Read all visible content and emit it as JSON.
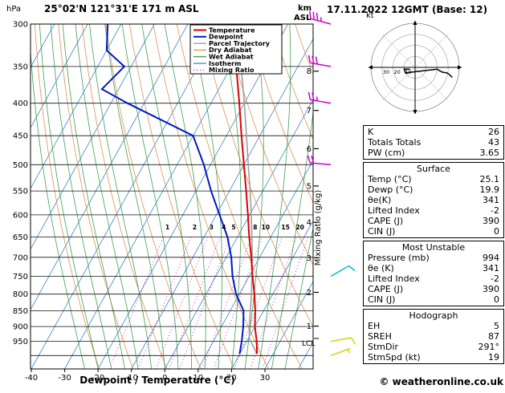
{
  "header": {
    "pressure_unit": "hPa",
    "station_title": "25°02'N 121°31'E 171 m ASL",
    "km_label": "km",
    "asl_label": "ASL",
    "datetime_title": "17.11.2022 12GMT (Base: 12)"
  },
  "footer": {
    "credit": "© weatheronline.co.uk"
  },
  "hodograph": {
    "unit_label": "kt",
    "ring_step_kt": 10,
    "ring_labels": [
      10,
      20,
      30
    ],
    "trace_uv_kt": [
      [
        -4.7,
        -1.7
      ],
      [
        -9.9,
        -1.7
      ],
      [
        -8.7,
        -5.0
      ],
      [
        19.9,
        -1.7
      ],
      [
        24.6,
        -4.3
      ],
      [
        29.5,
        -5.2
      ],
      [
        33.8,
        -9.1
      ]
    ]
  },
  "tables": [
    {
      "header": "",
      "rows": [
        [
          "K",
          "26"
        ],
        [
          "Totals Totals",
          "43"
        ],
        [
          "PW (cm)",
          "3.65"
        ]
      ]
    },
    {
      "header": "Surface",
      "rows": [
        [
          "Temp (°C)",
          "25.1"
        ],
        [
          "Dewp (°C)",
          "19.9"
        ],
        [
          "θe(K)",
          "341"
        ],
        [
          "Lifted Index",
          "-2"
        ],
        [
          "CAPE (J)",
          "390"
        ],
        [
          "CIN (J)",
          "0"
        ]
      ]
    },
    {
      "header": "Most Unstable",
      "rows": [
        [
          "Pressure (mb)",
          "994"
        ],
        [
          "θe (K)",
          "341"
        ],
        [
          "Lifted Index",
          "-2"
        ],
        [
          "CAPE (J)",
          "390"
        ],
        [
          "CIN (J)",
          "0"
        ]
      ]
    },
    {
      "header": "Hodograph",
      "rows": [
        [
          "EH",
          "5"
        ],
        [
          "SREH",
          "87"
        ],
        [
          "StmDir",
          "291°"
        ],
        [
          "StmSpd (kt)",
          "19"
        ]
      ]
    }
  ],
  "chart_data": {
    "type": "skewt-logp",
    "title": "25°02'N 121°31'E 171 m ASL",
    "x_axis": {
      "label": "Dewpoint / Temperature (°C)",
      "ticks": [
        -40,
        -30,
        -20,
        -10,
        0,
        10,
        20,
        30
      ]
    },
    "pressure_axis": {
      "unit": "hPa",
      "ticks": [
        300,
        350,
        400,
        450,
        500,
        550,
        600,
        650,
        700,
        750,
        800,
        850,
        900,
        950
      ],
      "range": [
        300,
        1050
      ],
      "scale": "log"
    },
    "km_axis": {
      "ticks": [
        1,
        2,
        3,
        4,
        5,
        6,
        7,
        8
      ],
      "lcl_label": "LCL",
      "lcl_pressure_hpa": 940
    },
    "mixing_ratio_axis_label": "Mixing Ratio (g/kg)",
    "mixing_ratio_lines_g_kg": [
      1,
      2,
      3,
      4,
      5,
      8,
      10,
      15,
      20,
      25
    ],
    "legend": [
      {
        "label": "Temperature",
        "color": "#dd0000",
        "dash": ""
      },
      {
        "label": "Dewpoint",
        "color": "#0018c8",
        "dash": ""
      },
      {
        "label": "Parcel Trajectory",
        "color": "#9e9e9e",
        "dash": ""
      },
      {
        "label": "Dry Adiabat",
        "color": "#e0914f",
        "dash": ""
      },
      {
        "label": "Wet Adiabat",
        "color": "#3fa052",
        "dash": ""
      },
      {
        "label": "Isotherm",
        "color": "#3c85c8",
        "dash": ""
      },
      {
        "label": "Mixing Ratio",
        "color": "#c81eb4",
        "dash": "1,3"
      }
    ],
    "series": {
      "temperature_p_c": [
        [
          994,
          25.1
        ],
        [
          950,
          23.0
        ],
        [
          925,
          21.5
        ],
        [
          900,
          20.0
        ],
        [
          850,
          17.5
        ],
        [
          800,
          14.5
        ],
        [
          750,
          11.0
        ],
        [
          700,
          7.5
        ],
        [
          650,
          3.5
        ],
        [
          600,
          -0.5
        ],
        [
          550,
          -5.0
        ],
        [
          500,
          -10.0
        ],
        [
          450,
          -15.5
        ],
        [
          400,
          -21.5
        ],
        [
          350,
          -28.5
        ],
        [
          300,
          -36.5
        ]
      ],
      "dewpoint_p_c": [
        [
          994,
          19.9
        ],
        [
          950,
          18.5
        ],
        [
          925,
          17.5
        ],
        [
          900,
          16.5
        ],
        [
          850,
          14.0
        ],
        [
          800,
          9.0
        ],
        [
          750,
          5.0
        ],
        [
          700,
          1.5
        ],
        [
          650,
          -3.0
        ],
        [
          600,
          -9.0
        ],
        [
          550,
          -15.5
        ],
        [
          500,
          -22.0
        ],
        [
          450,
          -30.0
        ],
        [
          400,
          -55.0
        ],
        [
          380,
          -65.0
        ],
        [
          350,
          -62.0
        ],
        [
          330,
          -70.0
        ],
        [
          300,
          -74.0
        ]
      ],
      "parcel_trajectory_p_c": [
        [
          994,
          25.1
        ],
        [
          940,
          20.3
        ],
        [
          900,
          18.3
        ],
        [
          850,
          16.0
        ],
        [
          800,
          13.6
        ],
        [
          750,
          10.8
        ],
        [
          700,
          7.8
        ],
        [
          650,
          4.3
        ],
        [
          600,
          0.5
        ],
        [
          550,
          -3.8
        ],
        [
          500,
          -8.7
        ],
        [
          450,
          -14.0
        ],
        [
          400,
          -20.0
        ],
        [
          350,
          -27.0
        ],
        [
          300,
          -35.5
        ]
      ]
    },
    "wind_barbs": [
      {
        "pressure_hpa": 300,
        "dir_deg": 285,
        "speed_kt": 35,
        "color": "#cc00cc"
      },
      {
        "pressure_hpa": 350,
        "dir_deg": 280,
        "speed_kt": 30,
        "color": "#cc00cc"
      },
      {
        "pressure_hpa": 400,
        "dir_deg": 280,
        "speed_kt": 25,
        "color": "#cc00cc"
      },
      {
        "pressure_hpa": 500,
        "dir_deg": 275,
        "speed_kt": 20,
        "color": "#cc00cc"
      },
      {
        "pressure_hpa": 750,
        "dir_deg": 60,
        "speed_kt": 10,
        "color": "#00bcd0"
      },
      {
        "pressure_hpa": 950,
        "dir_deg": 80,
        "speed_kt": 10,
        "color": "#d8d300"
      },
      {
        "pressure_hpa": 1000,
        "dir_deg": 70,
        "speed_kt": 5,
        "color": "#d8d300"
      }
    ],
    "surface_values": {
      "temp_c": 25.1,
      "dewp_c": 19.9
    }
  }
}
